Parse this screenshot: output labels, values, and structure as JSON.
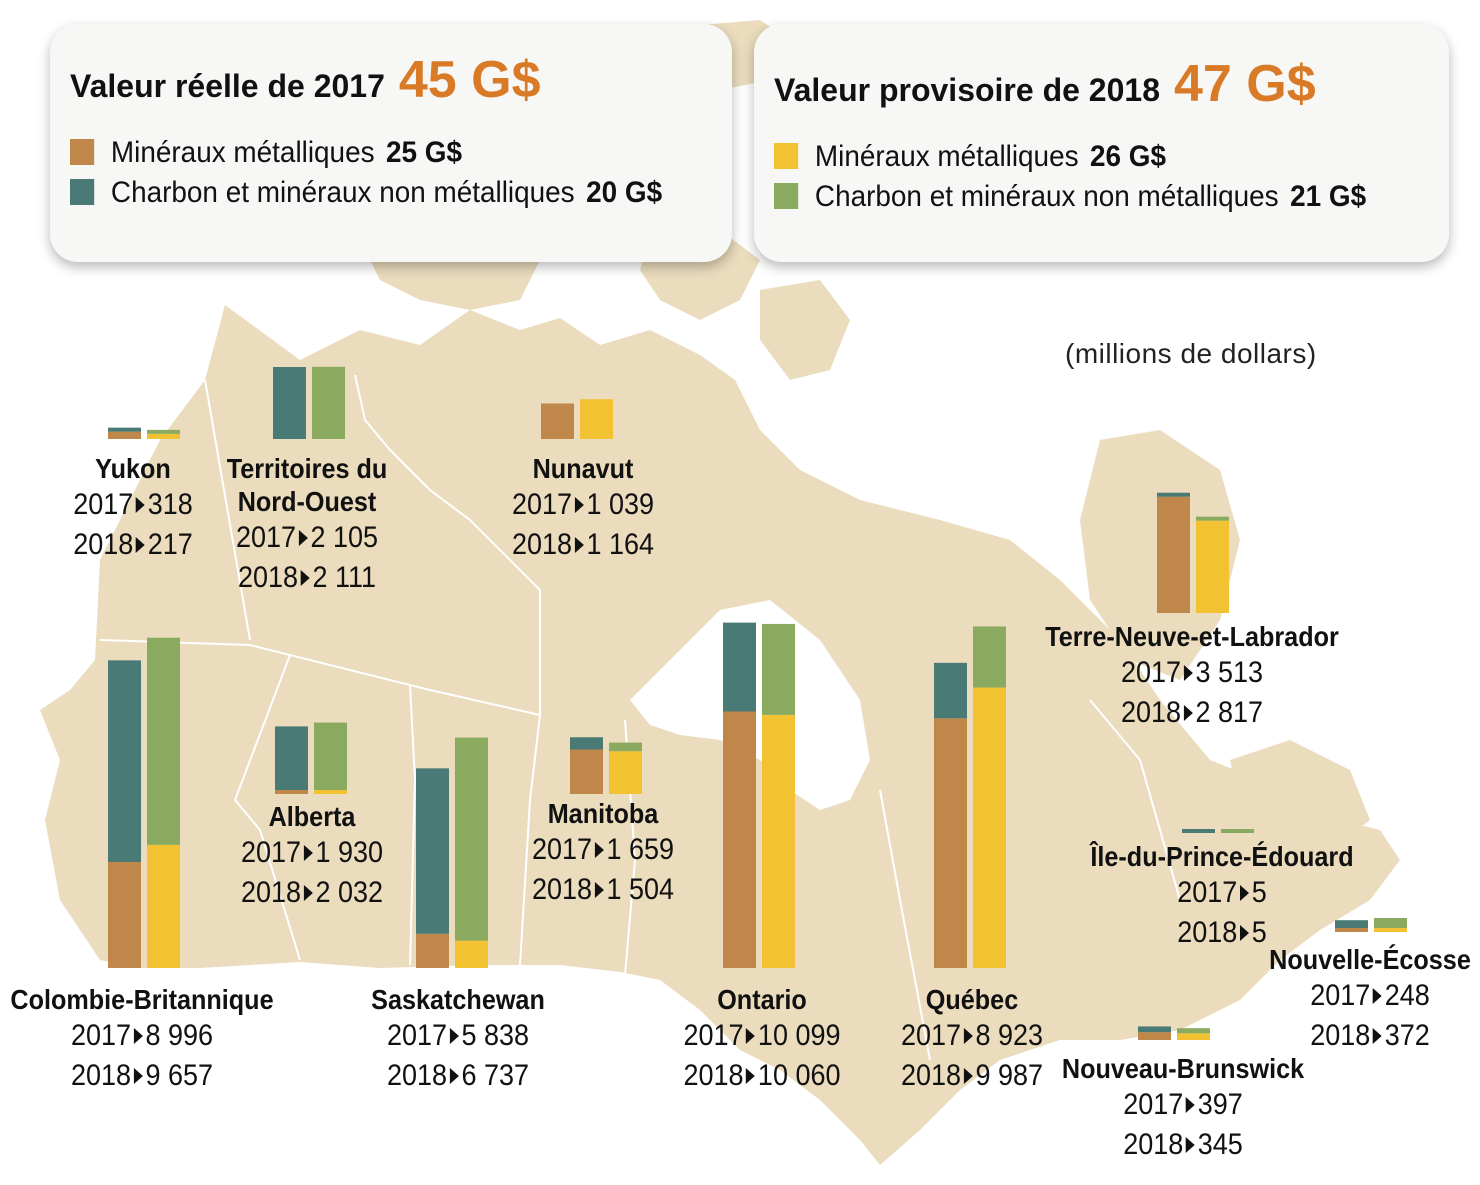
{
  "colors": {
    "metallic_2017": "#c0874a",
    "nonmetallic_2017": "#4a7a76",
    "metallic_2018": "#f2c232",
    "nonmetallic_2018": "#8aab5f",
    "headline": "#d97a27",
    "land": "#eadcbd"
  },
  "summary_2017": {
    "title": "Valeur réelle de 2017",
    "total": "45 G$",
    "metallic_label": "Minéraux métalliques",
    "metallic_value": "25 G$",
    "nonmetallic_label": "Charbon et minéraux non métalliques",
    "nonmetallic_value": "20 G$"
  },
  "summary_2018": {
    "title": "Valeur provisoire de 2018",
    "total": "47 G$",
    "metallic_label": "Minéraux métalliques",
    "metallic_value": "26 G$",
    "nonmetallic_label": "Charbon et minéraux non métalliques",
    "nonmetallic_value": "21 G$"
  },
  "unit_label": "(millions de dollars)",
  "chart_data": {
    "type": "bar",
    "stacked": true,
    "unit": "millions de dollars",
    "series_names": [
      "Minéraux métalliques",
      "Charbon et minéraux non métalliques"
    ],
    "provinces": [
      {
        "name": "Yukon",
        "y2017_label": "2017",
        "y2018_label": "2018",
        "v2017": "318",
        "v2018": "217",
        "met2017": 215,
        "non2017": 103,
        "met2018": 150,
        "non2018": 67
      },
      {
        "name": "Territoires du Nord-Ouest",
        "y2017_label": "2017",
        "y2018_label": "2018",
        "v2017": "2 105",
        "v2018": "2 111",
        "met2017": 0,
        "non2017": 2105,
        "met2018": 0,
        "non2018": 2111
      },
      {
        "name": "Nunavut",
        "y2017_label": "2017",
        "y2018_label": "2018",
        "v2017": "1 039",
        "v2018": "1 164",
        "met2017": 1039,
        "non2017": 0,
        "met2018": 1164,
        "non2018": 0
      },
      {
        "name": "Colombie-Britannique",
        "y2017_label": "2017",
        "y2018_label": "2018",
        "v2017": "8 996",
        "v2018": "9 657",
        "met2017": 3100,
        "non2017": 5896,
        "met2018": 3600,
        "non2018": 6057
      },
      {
        "name": "Alberta",
        "y2017_label": "2017",
        "y2018_label": "2018",
        "v2017": "1 930",
        "v2018": "2 032",
        "met2017": 70,
        "non2017": 1860,
        "met2018": 60,
        "non2018": 1972
      },
      {
        "name": "Saskatchewan",
        "y2017_label": "2017",
        "y2018_label": "2018",
        "v2017": "5 838",
        "v2018": "6 737",
        "met2017": 1000,
        "non2017": 4838,
        "met2018": 800,
        "non2018": 5937
      },
      {
        "name": "Manitoba",
        "y2017_label": "2017",
        "y2018_label": "2018",
        "v2017": "1 659",
        "v2018": "1 504",
        "met2017": 1300,
        "non2017": 359,
        "met2018": 1250,
        "non2018": 254
      },
      {
        "name": "Ontario",
        "y2017_label": "2017",
        "y2018_label": "2018",
        "v2017": "10 099",
        "v2018": "10 060",
        "met2017": 7500,
        "non2017": 2599,
        "met2018": 7400,
        "non2018": 2660
      },
      {
        "name": "Québec",
        "y2017_label": "2017",
        "y2018_label": "2018",
        "v2017": "8 923",
        "v2018": "9 987",
        "met2017": 7300,
        "non2017": 1623,
        "met2018": 8200,
        "non2018": 1787
      },
      {
        "name": "Terre-Neuve-et-Labrador",
        "y2017_label": "2017",
        "y2018_label": "2018",
        "v2017": "3 513",
        "v2018": "2 817",
        "met2017": 3400,
        "non2017": 113,
        "met2018": 2700,
        "non2018": 117
      },
      {
        "name": "Île-du-Prince-Édouard",
        "y2017_label": "2017",
        "y2018_label": "2018",
        "v2017": "5",
        "v2018": "5",
        "met2017": 0,
        "non2017": 5,
        "met2018": 0,
        "non2018": 5
      },
      {
        "name": "Nouvelle-Écosse",
        "y2017_label": "2017",
        "y2018_label": "2018",
        "v2017": "248",
        "v2018": "372",
        "met2017": 20,
        "non2017": 228,
        "met2018": 80,
        "non2018": 292
      },
      {
        "name": "Nouveau-Brunswick",
        "y2017_label": "2017",
        "y2018_label": "2018",
        "v2017": "397",
        "v2018": "345",
        "met2017": 230,
        "non2017": 167,
        "met2018": 195,
        "non2018": 150
      }
    ]
  }
}
